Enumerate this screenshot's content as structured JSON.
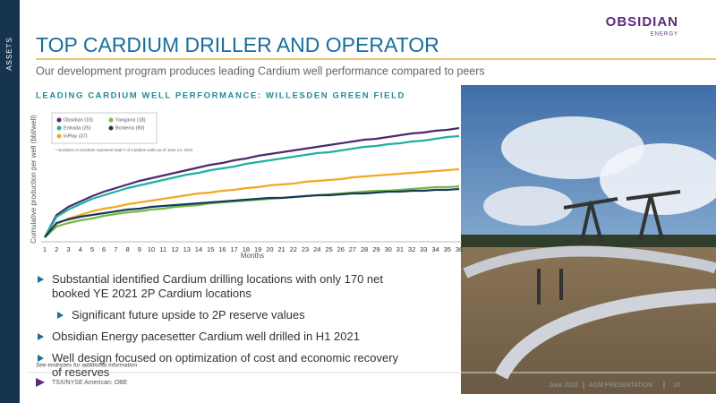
{
  "sidebar": "ASSETS",
  "logo": {
    "name": "OBSIDIAN",
    "sub": "ENERGY"
  },
  "title": "TOP CARDIUM DRILLER AND OPERATOR",
  "subtitle": "Our development program produces leading Cardium well performance compared to peers",
  "section_heading": "LEADING CARDIUM WELL PERFORMANCE: WILLESDEN GREEN FIELD",
  "chart_data": {
    "type": "line",
    "y_label": "Cumulative production per well (bbl/well)",
    "x_label": "Months",
    "note": "* Numbers in brackets represent total # of Cardium wells as of June 14, 2022",
    "x": [
      1,
      2,
      3,
      4,
      5,
      6,
      7,
      8,
      9,
      10,
      11,
      12,
      13,
      14,
      15,
      16,
      17,
      18,
      19,
      20,
      21,
      22,
      23,
      24,
      25,
      26,
      27,
      28,
      29,
      30,
      31,
      32,
      33,
      34,
      35,
      36
    ],
    "xlim": [
      1,
      36
    ],
    "ylim": [
      0,
      140
    ],
    "series": [
      {
        "name": "Obsidian (15)",
        "color": "#4b2a6e",
        "values": [
          5,
          30,
          39,
          45,
          51,
          56,
          60,
          64,
          68,
          71,
          74,
          77,
          80,
          83,
          86,
          88,
          91,
          93,
          96,
          98,
          100,
          102,
          104,
          106,
          108,
          110,
          112,
          114,
          115,
          117,
          119,
          121,
          122,
          124,
          125,
          127
        ]
      },
      {
        "name": "Entrada (25)",
        "color": "#1fb0a0",
        "values": [
          5,
          28,
          36,
          42,
          48,
          52,
          56,
          60,
          63,
          66,
          69,
          72,
          75,
          77,
          80,
          82,
          84,
          87,
          89,
          91,
          93,
          95,
          97,
          99,
          100,
          102,
          104,
          106,
          107,
          109,
          110,
          112,
          113,
          115,
          117,
          118
        ]
      },
      {
        "name": "InPlay (37)",
        "color": "#f5a623",
        "values": [
          5,
          20,
          26,
          30,
          34,
          37,
          39,
          42,
          44,
          46,
          48,
          50,
          52,
          54,
          55,
          57,
          58,
          60,
          61,
          63,
          64,
          65,
          67,
          68,
          69,
          70,
          72,
          73,
          74,
          75,
          76,
          77,
          78,
          79,
          80,
          81
        ]
      },
      {
        "name": "Yangarra (18)",
        "color": "#7ab648",
        "values": [
          5,
          17,
          21,
          24,
          26,
          29,
          31,
          33,
          34,
          36,
          37,
          39,
          40,
          41,
          43,
          44,
          45,
          46,
          47,
          48,
          49,
          50,
          51,
          52,
          53,
          54,
          55,
          56,
          57,
          57,
          58,
          59,
          60,
          61,
          61,
          62
        ]
      },
      {
        "name": "Bonterra (90)",
        "color": "#143c5a",
        "values": [
          5,
          21,
          25,
          28,
          30,
          32,
          34,
          36,
          37,
          39,
          40,
          41,
          42,
          43,
          44,
          45,
          46,
          47,
          48,
          49,
          49,
          50,
          51,
          52,
          52,
          53,
          54,
          54,
          55,
          56,
          56,
          57,
          57,
          58,
          58,
          59
        ]
      }
    ]
  },
  "bullets": [
    {
      "level": 1,
      "text": "Substantial identified Cardium drilling locations with only 170 net booked YE 2021 2P Cardium locations"
    },
    {
      "level": 2,
      "text": "Significant future upside to 2P reserve values"
    },
    {
      "level": 1,
      "text": "Obsidian Energy pacesetter Cardium well drilled in H1 2021"
    },
    {
      "level": 1,
      "text": "Well design focused on optimization of cost and economic recovery of reserves"
    }
  ],
  "footnote": "See endnotes for additional information",
  "footer": {
    "ticker": "TSX/NYSE American: OBE",
    "date": "June 2022",
    "event": "AGM PRESENTATION",
    "page": "10"
  }
}
